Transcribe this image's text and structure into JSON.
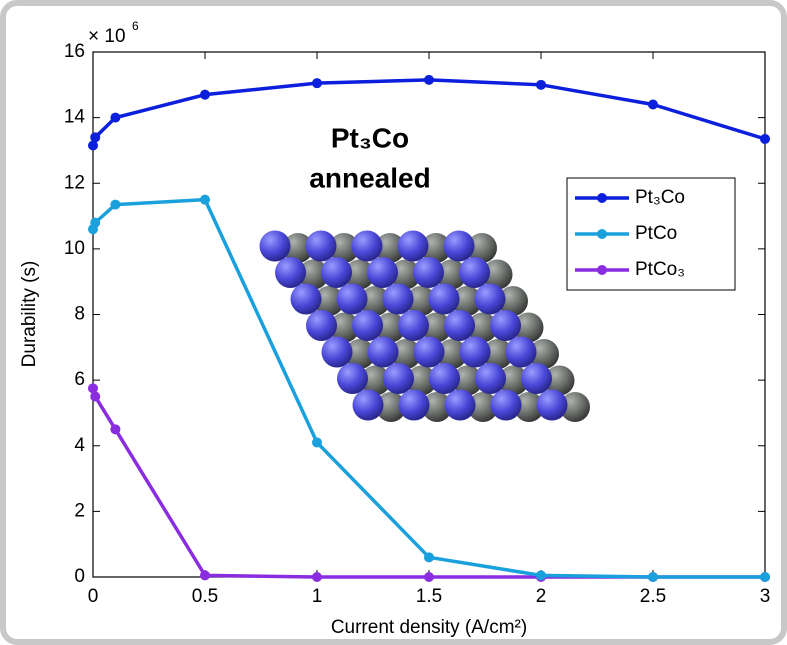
{
  "chart_data": {
    "type": "line",
    "x_label": "Current density (A/cm²)",
    "y_label": "Durability (s)",
    "y_multiplier": "× 10",
    "y_multiplier_exponent": "6",
    "annotation": [
      "Pt₃Co",
      "annealed"
    ],
    "x": [
      0,
      0.01,
      0.1,
      0.5,
      1,
      1.5,
      2,
      2.5,
      3
    ],
    "series": [
      {
        "name": "Pt₃Co",
        "color": "#0b1fdc",
        "values": [
          13.15,
          13.4,
          14.0,
          14.7,
          15.05,
          15.15,
          15.0,
          14.4,
          13.35
        ]
      },
      {
        "name": "PtCo",
        "color": "#1aa0dc",
        "values": [
          10.6,
          10.8,
          11.35,
          11.5,
          4.1,
          0.6,
          0.05,
          0,
          0
        ]
      },
      {
        "name": "PtCo₃",
        "color": "#8a2de0",
        "values": [
          5.75,
          5.5,
          4.5,
          0.05,
          0,
          0,
          0,
          0,
          0
        ]
      }
    ],
    "xlim": [
      0,
      3
    ],
    "xticks": [
      0,
      0.5,
      1,
      1.5,
      2,
      2.5,
      3
    ],
    "ylim": [
      0,
      16
    ],
    "yticks": [
      0,
      2,
      4,
      6,
      8,
      10,
      12,
      14,
      16
    ],
    "grid": false,
    "legend": "right"
  }
}
